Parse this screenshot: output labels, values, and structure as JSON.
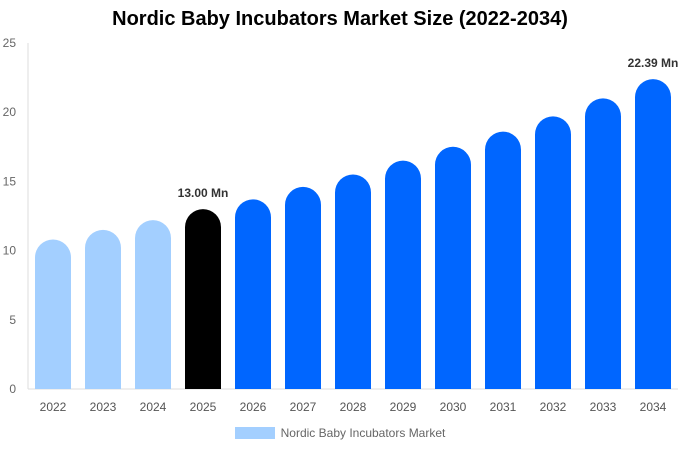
{
  "chart_data": {
    "type": "bar",
    "title": "Nordic Baby Incubators Market Size (2022-2034)",
    "categories": [
      "2022",
      "2023",
      "2024",
      "2025",
      "2026",
      "2027",
      "2028",
      "2029",
      "2030",
      "2031",
      "2032",
      "2033",
      "2034"
    ],
    "series": [
      {
        "name": "Nordic Baby Incubators Market",
        "values": [
          10.8,
          11.5,
          12.2,
          13.0,
          13.7,
          14.6,
          15.5,
          16.5,
          17.5,
          18.6,
          19.7,
          21.0,
          22.39
        ]
      }
    ],
    "data_labels": {
      "3": "13.00 Mn",
      "12": "22.39 Mn"
    },
    "ylim": [
      0,
      25
    ],
    "yticks": [
      0,
      5,
      10,
      15,
      20,
      25
    ],
    "grid": false,
    "legend_position": "bottom",
    "colors": {
      "historical": "#a3cfff",
      "current": "#000000",
      "forecast": "#0066ff"
    }
  }
}
